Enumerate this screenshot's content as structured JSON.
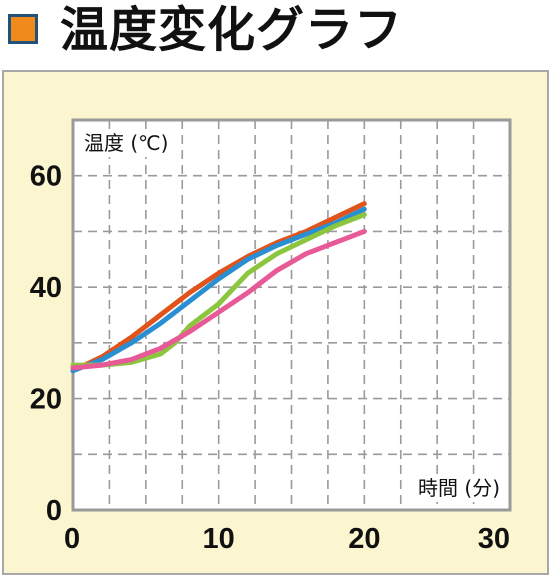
{
  "header": {
    "title": "温度変化グラフ",
    "marker_fill": "#f08a1c",
    "marker_border": "#1f5478"
  },
  "colors": {
    "panel_background": "#fbf6cf",
    "plot_background": "#ffffff",
    "grid": "#9a9a9a",
    "frame": "#9a9a9a"
  },
  "chart_data": {
    "type": "line",
    "title": "",
    "xlabel": "時間 (分)",
    "ylabel": "温度 (℃)",
    "xlim": [
      0,
      30
    ],
    "ylim": [
      0,
      70
    ],
    "x_ticks": [
      0,
      10,
      20,
      30
    ],
    "y_ticks": [
      0,
      20,
      40,
      60
    ],
    "grid": true,
    "series": [
      {
        "color": "#e0531a",
        "x": [
          0,
          2,
          4,
          6,
          8,
          10,
          12,
          14,
          16,
          18,
          20
        ],
        "y": [
          25,
          27.5,
          31,
          35,
          39,
          42.5,
          45.5,
          48,
          50,
          52.5,
          55
        ]
      },
      {
        "color": "#2a8fd2",
        "x": [
          0,
          2,
          4,
          6,
          8,
          10,
          12,
          14,
          16,
          18,
          20
        ],
        "y": [
          25,
          27,
          30,
          33.5,
          37.5,
          41.5,
          45,
          47.5,
          49.5,
          51.5,
          54
        ]
      },
      {
        "color": "#8cc63f",
        "x": [
          0,
          2,
          4,
          6,
          7,
          8,
          10,
          12,
          14,
          16,
          18,
          20
        ],
        "y": [
          26,
          26,
          26.5,
          28,
          30,
          33,
          37,
          42.5,
          46,
          48.5,
          51,
          53
        ]
      },
      {
        "color": "#e85a97",
        "x": [
          0,
          2,
          4,
          6,
          8,
          10,
          12,
          14,
          16,
          18,
          20
        ],
        "y": [
          25.5,
          26,
          27,
          29,
          32,
          35.5,
          39,
          43,
          46,
          48,
          50
        ]
      }
    ]
  }
}
